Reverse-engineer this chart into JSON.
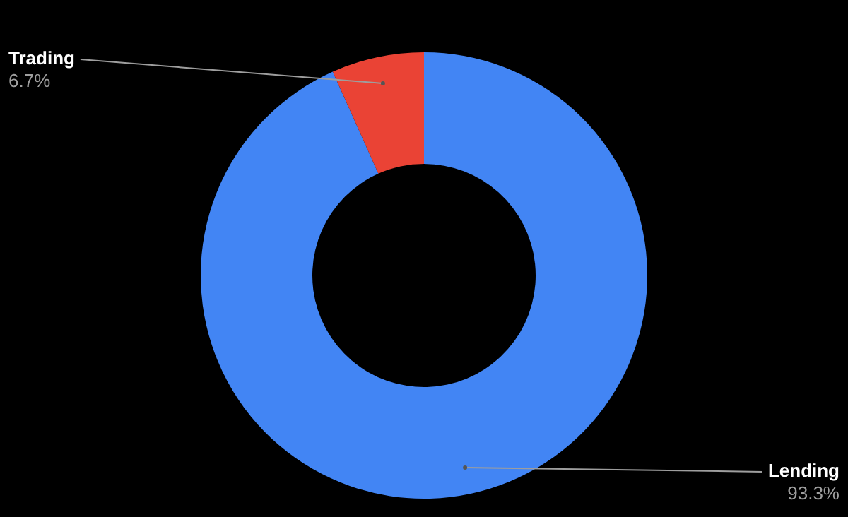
{
  "chart_data": {
    "type": "donut",
    "categories": [
      "Lending",
      "Trading"
    ],
    "values": [
      93.3,
      6.7
    ],
    "value_labels": [
      "93.3%",
      "6.7%"
    ],
    "colors": [
      "#4285f4",
      "#ea4335"
    ],
    "legend": false
  }
}
